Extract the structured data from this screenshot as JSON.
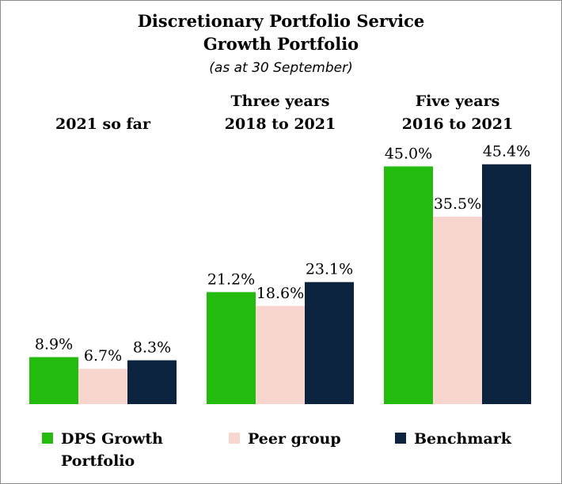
{
  "chart_data": {
    "type": "bar",
    "title": "Discretionary Portfolio Service",
    "subtitle": "Growth Portfolio",
    "note": "(as at 30 September)",
    "categories": [
      {
        "line1": "",
        "line2": "2021 so far"
      },
      {
        "line1": "Three years",
        "line2": "2018 to 2021"
      },
      {
        "line1": "Five years",
        "line2": "2016 to 2021"
      }
    ],
    "series": [
      {
        "name_lines": [
          "DPS Growth",
          "Portfolio"
        ],
        "color": "#22bb0e",
        "values": [
          8.9,
          21.2,
          45.0
        ],
        "labels": [
          "8.9%",
          "21.2%",
          "45.0%"
        ]
      },
      {
        "name_lines": [
          "Peer group"
        ],
        "color": "#f8d6cf",
        "values": [
          6.7,
          18.6,
          35.5
        ],
        "labels": [
          "6.7%",
          "18.6%",
          "35.5%"
        ]
      },
      {
        "name_lines": [
          "Benchmark"
        ],
        "color": "#0c2340",
        "values": [
          8.3,
          23.1,
          45.4
        ],
        "labels": [
          "8.3%",
          "23.1%",
          "45.4%"
        ]
      }
    ],
    "ylim": [
      0,
      50
    ],
    "grid": false,
    "legend_position": "bottom"
  }
}
